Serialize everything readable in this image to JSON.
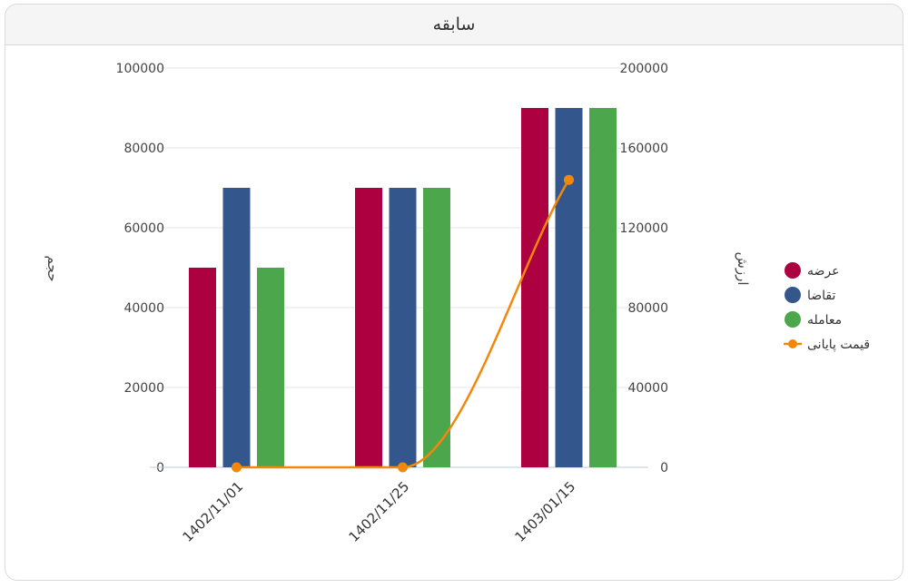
{
  "header": {
    "title": "سابقه"
  },
  "colors": {
    "offer": "#ad0040",
    "demand": "#33578c",
    "trade": "#4ca64c",
    "final_price": "#f2880b",
    "grid": "#e6e6e6",
    "axis": "#b8c8d8"
  },
  "chart_data": {
    "type": "bar",
    "title": "سابقه",
    "categories": [
      "1402/11/01",
      "1402/11/25",
      "1403/01/15"
    ],
    "left_axis": {
      "label": "حجم",
      "ylim": [
        0,
        100000
      ],
      "ticks": [
        0,
        20000,
        40000,
        60000,
        80000,
        100000
      ]
    },
    "right_axis": {
      "label": "ارزش",
      "ylim": [
        0,
        200000
      ],
      "ticks": [
        0,
        40000,
        80000,
        120000,
        160000,
        200000
      ]
    },
    "series": [
      {
        "name": "عرضه",
        "type": "bar",
        "axis": "left",
        "color_key": "offer",
        "values": [
          50000,
          70000,
          90000
        ]
      },
      {
        "name": "تقاضا",
        "type": "bar",
        "axis": "left",
        "color_key": "demand",
        "values": [
          70000,
          70000,
          90000
        ]
      },
      {
        "name": "معامله",
        "type": "bar",
        "axis": "left",
        "color_key": "trade",
        "values": [
          50000,
          70000,
          90000
        ]
      },
      {
        "name": "قیمت پایانی",
        "type": "line",
        "axis": "right",
        "color_key": "final_price",
        "values": [
          0,
          0,
          144000
        ]
      }
    ],
    "legend_position": "right",
    "grid": true
  }
}
